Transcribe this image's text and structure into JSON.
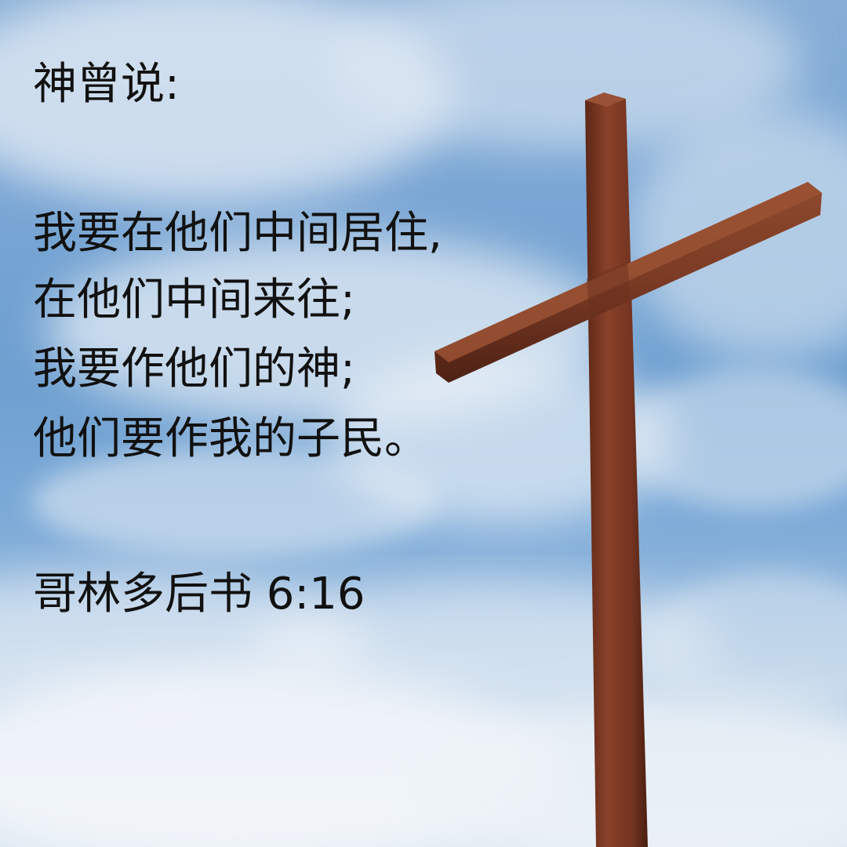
{
  "verse": {
    "intro": "神曾说:",
    "lines": [
      "我要在他们中间居住,",
      "在他们中间来往;",
      "我要作他们的神;",
      "他们要作我的子民。"
    ],
    "reference": "哥林多后书 6:16"
  },
  "colors": {
    "sky_blue": "#6d9fd0",
    "cloud_white": "#eef3f8",
    "cross_wood": "#7a3a24",
    "text": "#111111"
  }
}
